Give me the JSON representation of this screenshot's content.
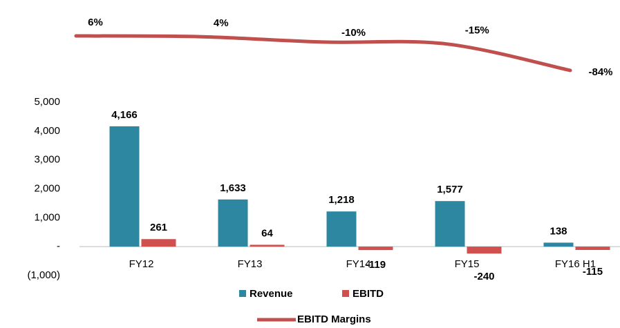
{
  "chart_data": {
    "type": "bar",
    "categories": [
      "FY12",
      "FY13",
      "FY14",
      "FY15",
      "FY16 H1"
    ],
    "series": [
      {
        "name": "Revenue",
        "color": "#2e87a0",
        "values": [
          4166,
          1633,
          1218,
          1577,
          138
        ],
        "value_labels": [
          "4,166",
          "1,633",
          "1,218",
          "1,577",
          "138"
        ]
      },
      {
        "name": "EBITD",
        "color": "#d05050",
        "values": [
          261,
          64,
          -119,
          -240,
          -115
        ]
      },
      {
        "name": "EBITD Margins",
        "type": "line",
        "axis": "y2",
        "color": "#c0504d",
        "values": [
          6,
          4,
          -10,
          -15,
          -84
        ],
        "value_labels": [
          "6%",
          "4%",
          "-10%",
          "-15%",
          "-84%"
        ]
      }
    ],
    "ylim": [
      -1000,
      5000
    ],
    "yticks": [
      {
        "value": -1000,
        "label": "(1,000)"
      },
      {
        "value": 0,
        "label": "-"
      },
      {
        "value": 1000,
        "label": "1,000"
      },
      {
        "value": 2000,
        "label": "2,000"
      },
      {
        "value": 3000,
        "label": "3,000"
      },
      {
        "value": 4000,
        "label": "4,000"
      },
      {
        "value": 5000,
        "label": "5,000"
      }
    ],
    "y2lim": [
      -90,
      10
    ],
    "legend": "bottom"
  }
}
